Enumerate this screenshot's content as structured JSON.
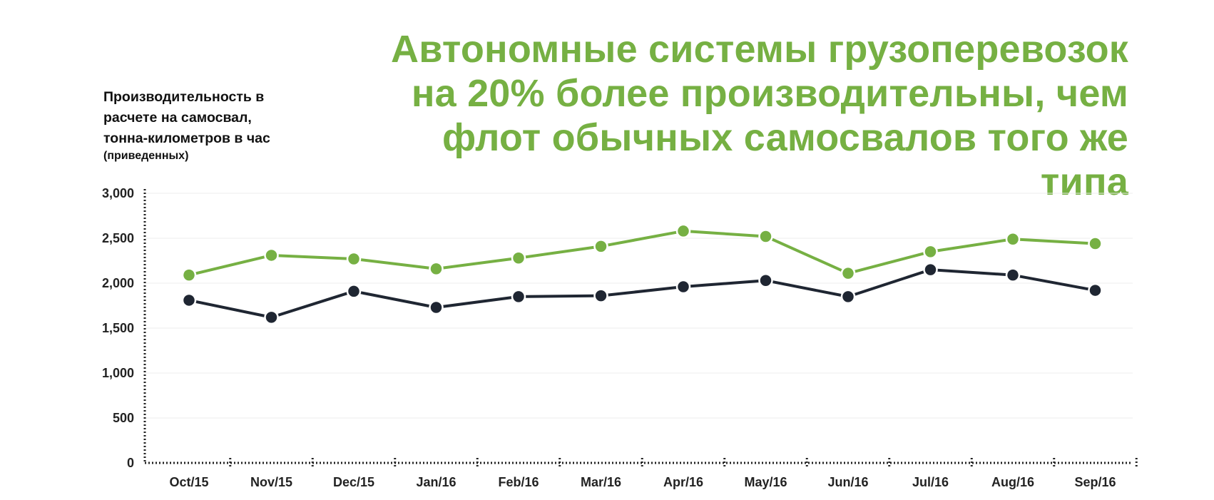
{
  "title_lines": [
    "Автономные системы грузоперевозок",
    "на 20% более производительны, чем",
    "флот обычных самосвалов того же типа"
  ],
  "y_axis_title_lines": [
    "Производительность в",
    "расчете на самосвал,",
    "тонна-километров в час"
  ],
  "y_axis_note": "(приведенных)",
  "colors": {
    "green": "#76b043",
    "dark": "#1f2632",
    "title": "#76b043",
    "grid": "#ececec",
    "axis": "#222222"
  },
  "chart_data": {
    "type": "line",
    "x": [
      "Oct/15",
      "Nov/15",
      "Dec/15",
      "Jan/16",
      "Feb/16",
      "Mar/16",
      "Apr/16",
      "May/16",
      "Jun/16",
      "Jul/16",
      "Aug/16",
      "Sep/16"
    ],
    "y_ticks": [
      "0",
      "500",
      "1,000",
      "1,500",
      "2,000",
      "2,500",
      "3,000"
    ],
    "ylim": [
      0,
      3000
    ],
    "grid": true,
    "legend": "none",
    "series": [
      {
        "color": "#76b043",
        "values": [
          2090,
          2310,
          2270,
          2160,
          2280,
          2410,
          2580,
          2520,
          2110,
          2350,
          2490,
          2440
        ]
      },
      {
        "color": "#1f2632",
        "values": [
          1810,
          1620,
          1910,
          1730,
          1850,
          1860,
          1960,
          2030,
          1850,
          2150,
          2090,
          1920
        ]
      }
    ]
  }
}
